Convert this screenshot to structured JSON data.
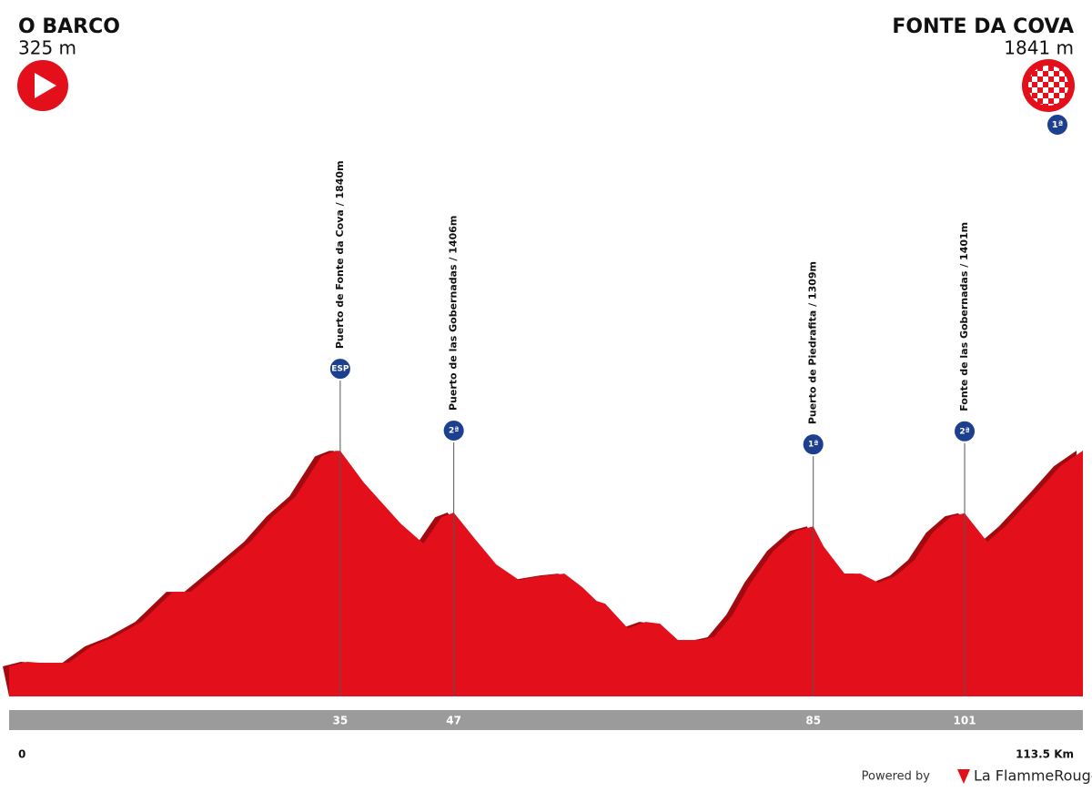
{
  "chart_data": {
    "type": "area",
    "start": {
      "name": "O BARCO",
      "elevation": "325 m"
    },
    "finish": {
      "name": "FONTE DA COVA",
      "elevation": "1841 m",
      "category": "1ª"
    },
    "x": [
      0,
      1.9,
      3.4,
      6.3,
      8.7,
      11.1,
      14,
      17.3,
      19.2,
      22.1,
      25.5,
      27.9,
      30.3,
      33,
      34.5,
      35,
      37.5,
      41.4,
      43.8,
      45.7,
      47,
      49.1,
      51.5,
      53.9,
      56.8,
      58.7,
      60.6,
      62.1,
      63,
      65.4,
      67.3,
      68.8,
      70.7,
      73.1,
      74.5,
      76.5,
      78.4,
      80.8,
      83.2,
      85,
      86.1,
      88.3,
      90,
      91.9,
      93.8,
      95.7,
      97.6,
      99.6,
      101,
      103.4,
      105.3,
      108.7,
      111.1,
      113.5
    ],
    "values": [
      325,
      357,
      350,
      350,
      466,
      530,
      638,
      849,
      849,
      1009,
      1200,
      1380,
      1520,
      1800,
      1840,
      1840,
      1616,
      1328,
      1188,
      1373,
      1406,
      1232,
      1041,
      932,
      964,
      977,
      881,
      785,
      766,
      593,
      638,
      625,
      510,
      510,
      530,
      689,
      913,
      1137,
      1277,
      1309,
      1168,
      977,
      977,
      913,
      964,
      1073,
      1264,
      1380,
      1401,
      1200,
      1309,
      1552,
      1731,
      1841
    ],
    "color": "#e3101b",
    "xlim": [
      0,
      113.5
    ],
    "xticks": [
      0,
      {
        "value": 113.5,
        "label": "113.5 Km"
      }
    ],
    "climbs": [
      {
        "km": 35,
        "label": "Puerto de Fonte da Cova / 1840m",
        "category": "ESP"
      },
      {
        "km": 47,
        "label": "Puerto de las Gobernadas / 1406m",
        "category": "2ª"
      },
      {
        "km": 85,
        "label": "Puerto de Piedrafita / 1309m",
        "category": "1ª"
      },
      {
        "km": 101,
        "label": "Fonte de las Gobernadas / 1401m",
        "category": "2ª"
      }
    ],
    "credit": {
      "prefix": "Powered by",
      "brand": "La FlammeRouge"
    }
  }
}
